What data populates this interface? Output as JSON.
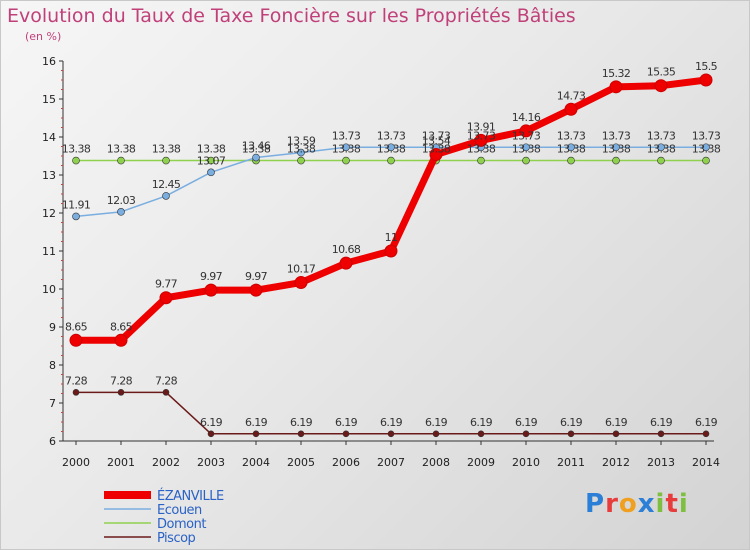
{
  "title": "Evolution du Taux de Taxe Foncière sur les Propriétés Bâties",
  "unit": "(en %)",
  "logo": {
    "text": "Proxiti",
    "colors": [
      "#2b7fd6",
      "#e83c3c",
      "#f0a020",
      "#2b7fd6",
      "#7fbf3f",
      "#e83c3c",
      "#7fbf3f"
    ]
  },
  "chart_data": {
    "type": "line",
    "title": "Evolution du Taux de Taxe Foncière sur les Propriétés Bâties",
    "ylabel": "(en %)",
    "xlabel": "",
    "x": [
      "2000",
      "2001",
      "2002",
      "2003",
      "2004",
      "2005",
      "2006",
      "2007",
      "2008",
      "2009",
      "2010",
      "2011",
      "2012",
      "2013",
      "2014"
    ],
    "ylim": [
      6,
      16
    ],
    "yticks": [
      "6",
      "7",
      "8",
      "9",
      "10",
      "11",
      "12",
      "13",
      "14",
      "15",
      "16"
    ],
    "grid": false,
    "legend_position": "bottom-left",
    "series": [
      {
        "name": "Piscop",
        "color": "#6b1a1a",
        "width": 1.5,
        "marker": 3,
        "values": [
          7.28,
          7.28,
          7.28,
          6.19,
          6.19,
          6.19,
          6.19,
          6.19,
          6.19,
          6.19,
          6.19,
          6.19,
          6.19,
          6.19,
          6.19
        ],
        "labels": [
          "7.28",
          "7.28",
          "7.28",
          "6.19",
          "6.19",
          "6.19",
          "6.19",
          "6.19",
          "6.19",
          "6.19",
          "6.19",
          "6.19",
          "6.19",
          "6.19",
          "6.19"
        ]
      },
      {
        "name": "Domont",
        "color": "#8fd14f",
        "width": 1.5,
        "marker": 3.5,
        "values": [
          13.38,
          13.38,
          13.38,
          13.38,
          13.38,
          13.38,
          13.38,
          13.38,
          13.38,
          13.38,
          13.38,
          13.38,
          13.38,
          13.38,
          13.38
        ],
        "labels": [
          "13.38",
          "13.38",
          "13.38",
          "13.38",
          "13.38",
          "13.38",
          "13.38",
          "13.38",
          "13.38",
          "13.38",
          "13.38",
          "13.38",
          "13.38",
          "13.38",
          "13.38"
        ]
      },
      {
        "name": "Ecouen",
        "color": "#7aaee0",
        "width": 1.5,
        "marker": 3.5,
        "values": [
          11.91,
          12.03,
          12.45,
          13.07,
          13.46,
          13.59,
          13.73,
          13.73,
          13.73,
          13.73,
          13.73,
          13.73,
          13.73,
          13.73,
          13.73
        ],
        "labels": [
          "11.91",
          "12.03",
          "12.45",
          "13.07",
          "13.46",
          "13.59",
          "13.73",
          "13.73",
          "13.73",
          "13.73",
          "13.73",
          "13.73",
          "13.73",
          "13.73",
          "13.73"
        ]
      },
      {
        "name": "ÉZANVILLE",
        "color": "#ee0000",
        "width": 7,
        "marker": 6,
        "values": [
          8.65,
          8.65,
          9.77,
          9.97,
          9.97,
          10.17,
          10.68,
          11,
          13.54,
          13.91,
          14.16,
          14.73,
          15.32,
          15.35,
          15.5
        ],
        "labels": [
          "8.65",
          "8.65",
          "9.77",
          "9.97",
          "9.97",
          "10.17",
          "10.68",
          "11",
          "13.54",
          "13.91",
          "14.16",
          "14.73",
          "15.32",
          "15.35",
          "15.5"
        ]
      }
    ],
    "legend": [
      "ÉZANVILLE",
      "Ecouen",
      "Domont",
      "Piscop"
    ]
  }
}
